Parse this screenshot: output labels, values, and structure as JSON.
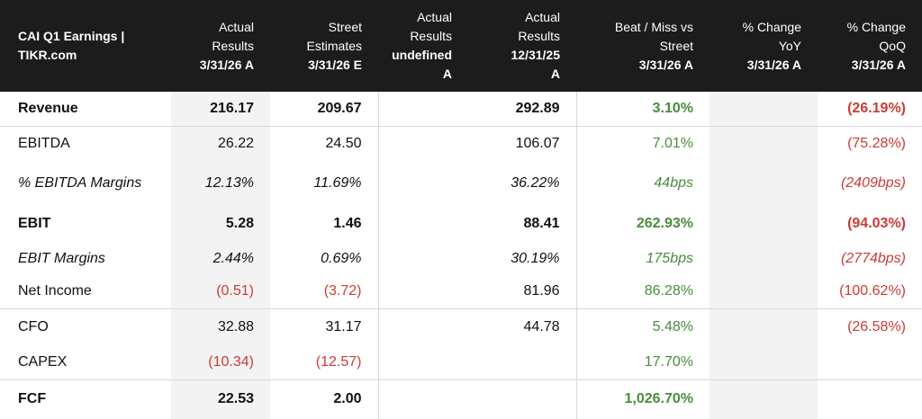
{
  "header": {
    "title_line1": "CAI Q1 Earnings |",
    "title_line2": "TIKR.com",
    "columns": [
      {
        "line1": "Actual",
        "line2": "Results",
        "date": "3/31/26 A"
      },
      {
        "line1": "Street",
        "line2": "Estimates",
        "date": "3/31/26 E"
      },
      {
        "line1": "Actual",
        "line2": "Results",
        "date_line1": "undefined",
        "date_line2": "A"
      },
      {
        "line1": "Actual",
        "line2": "Results",
        "date_line1": "12/31/25",
        "date_line2": "A"
      },
      {
        "line1": "Beat / Miss vs",
        "line2": "Street",
        "date": "3/31/26 A"
      },
      {
        "line1": "% Change",
        "line2": "YoY",
        "date": "3/31/26 A"
      },
      {
        "line1": "% Change",
        "line2": "QoQ",
        "date": "3/31/26 A"
      }
    ]
  },
  "rows": {
    "revenue": {
      "label": "Revenue",
      "actual": "216.17",
      "estimate": "209.67",
      "prior_year": "",
      "prior_quarter": "292.89",
      "beat": "3.10%",
      "yoy": "",
      "qoq": "(26.19%)"
    },
    "ebitda": {
      "label": "EBITDA",
      "actual": "26.22",
      "estimate": "24.50",
      "prior_year": "",
      "prior_quarter": "106.07",
      "beat": "7.01%",
      "yoy": "",
      "qoq": "(75.28%)"
    },
    "ebitda_margins": {
      "label": "% EBITDA Margins",
      "actual": "12.13%",
      "estimate": "11.69%",
      "prior_year": "",
      "prior_quarter": "36.22%",
      "beat": "44bps",
      "yoy": "",
      "qoq": "(2409bps)"
    },
    "ebit": {
      "label": "EBIT",
      "actual": "5.28",
      "estimate": "1.46",
      "prior_year": "",
      "prior_quarter": "88.41",
      "beat": "262.93%",
      "yoy": "",
      "qoq": "(94.03%)"
    },
    "ebit_margins": {
      "label": "EBIT Margins",
      "actual": "2.44%",
      "estimate": "0.69%",
      "prior_year": "",
      "prior_quarter": "30.19%",
      "beat": "175bps",
      "yoy": "",
      "qoq": "(2774bps)"
    },
    "net_income": {
      "label": "Net Income",
      "actual": "(0.51)",
      "estimate": "(3.72)",
      "prior_year": "",
      "prior_quarter": "81.96",
      "beat": "86.28%",
      "yoy": "",
      "qoq": "(100.62%)"
    },
    "cfo": {
      "label": "CFO",
      "actual": "32.88",
      "estimate": "31.17",
      "prior_year": "",
      "prior_quarter": "44.78",
      "beat": "5.48%",
      "yoy": "",
      "qoq": "(26.58%)"
    },
    "capex": {
      "label": "CAPEX",
      "actual": "(10.34)",
      "estimate": "(12.57)",
      "prior_year": "",
      "prior_quarter": "",
      "beat": "17.70%",
      "yoy": "",
      "qoq": ""
    },
    "fcf": {
      "label": "FCF",
      "actual": "22.53",
      "estimate": "2.00",
      "prior_year": "",
      "prior_quarter": "",
      "beat": "1,026.70%",
      "yoy": "",
      "qoq": ""
    }
  },
  "colors": {
    "header_bg": "#1c1c1c",
    "positive": "#4a8c3f",
    "negative": "#cc3b35",
    "shaded_column": "#f3f3f3"
  }
}
